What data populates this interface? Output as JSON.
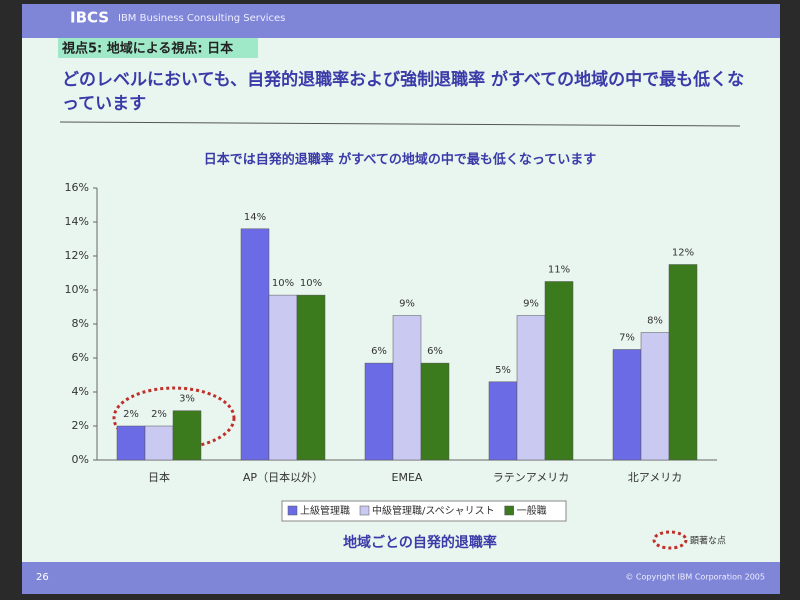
{
  "header": {
    "logo": "IBCS",
    "company": "IBM Business Consulting Services"
  },
  "slide": {
    "section": "視点5: 地域による視点: 日本",
    "headline": "どのレベルにおいても、自発的退職率および強制退職率 がすべての地域の中で最も低くなっています"
  },
  "footer": {
    "page": "26",
    "copyright": "© Copyright IBM Corporation 2005"
  },
  "chart_data": {
    "type": "bar",
    "title": "日本では自発的退職率 がすべての地域の中で最も低くなっています",
    "xlabel": "地域ごとの自発的退職率",
    "annotation": "顕著な点",
    "categories": [
      "日本",
      "AP（日本以外）",
      "EMEA",
      "ラテンアメリカ",
      "北アメリカ"
    ],
    "series": [
      {
        "name": "上級管理職",
        "color": "#6b6be6",
        "values": [
          2.0,
          13.6,
          5.7,
          4.6,
          6.5
        ],
        "value_labels": [
          "2%",
          "14%",
          "6%",
          "5%",
          "7%"
        ]
      },
      {
        "name": "中級管理職/スペシャリスト",
        "color": "#c9c9f2",
        "values": [
          2.0,
          9.7,
          8.5,
          8.5,
          7.5
        ],
        "value_labels": [
          "2%",
          "10%",
          "9%",
          "9%",
          "8%"
        ]
      },
      {
        "name": "一般職",
        "color": "#3c7a1e",
        "values": [
          2.9,
          9.7,
          5.7,
          10.5,
          11.5
        ],
        "value_labels": [
          "3%",
          "10%",
          "6%",
          "11%",
          "12%"
        ]
      }
    ],
    "ylim": [
      0,
      16
    ],
    "yticks": [
      {
        "value": 0,
        "label": "0%"
      },
      {
        "value": 2,
        "label": "2%"
      },
      {
        "value": 4,
        "label": "4%"
      },
      {
        "value": 6,
        "label": "6%"
      },
      {
        "value": 8,
        "label": "8%"
      },
      {
        "value": 10,
        "label": "10%"
      },
      {
        "value": 12,
        "label": "12%"
      },
      {
        "value": 14,
        "label": "14%"
      },
      {
        "value": 16,
        "label": "16%"
      }
    ]
  }
}
